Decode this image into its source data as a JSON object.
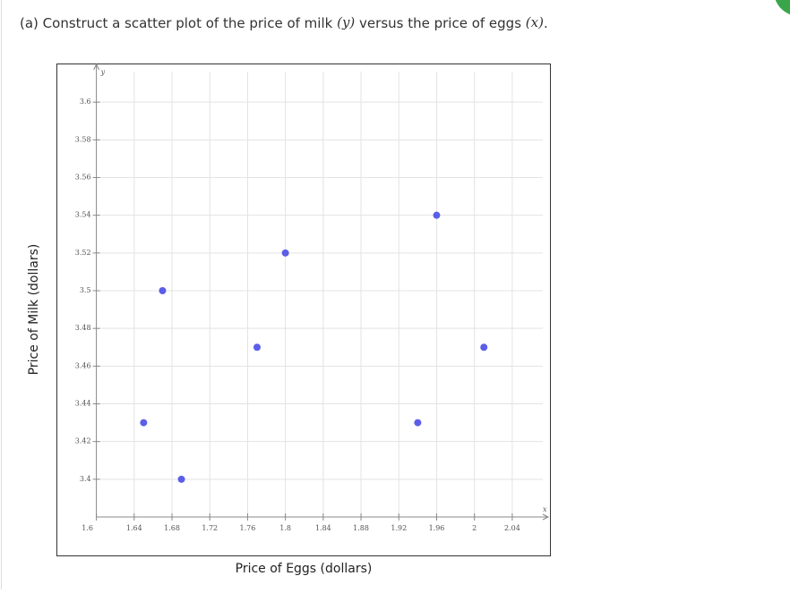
{
  "question": {
    "parts": [
      "(a) Construct a scatter plot of the price of milk ",
      "(y)",
      " versus the price of eggs ",
      "(x)",
      "."
    ]
  },
  "chart_data": {
    "type": "scatter",
    "x_label": "Price of Eggs (dollars)",
    "y_label": "Price of Milk (dollars)",
    "x_axis_symbol": "x",
    "y_axis_symbol": "y",
    "x": [
      1.65,
      1.67,
      1.69,
      1.77,
      1.8,
      1.94,
      1.96,
      2.01
    ],
    "values": [
      3.43,
      3.5,
      3.4,
      3.47,
      3.52,
      3.43,
      3.54,
      3.47
    ],
    "color": "#5b5ee8",
    "xlim": [
      1.6,
      2.078
    ],
    "ylim": [
      3.38,
      3.62
    ],
    "xticks": [
      1.6,
      1.64,
      1.68,
      1.72,
      1.76,
      1.8,
      1.84,
      1.88,
      1.92,
      1.96,
      2,
      2.04
    ],
    "yticks": [
      3.4,
      3.42,
      3.44,
      3.46,
      3.48,
      3.5,
      3.52,
      3.54,
      3.56,
      3.58,
      3.6
    ],
    "grid": true
  }
}
